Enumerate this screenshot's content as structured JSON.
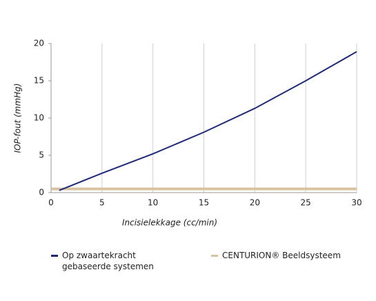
{
  "chart_data": {
    "type": "line",
    "xlabel": "Incisielekkage (cc/min)",
    "ylabel": "IOP-fout (mmHg)",
    "xlim": [
      0,
      30
    ],
    "xticks": [
      0,
      5,
      10,
      15,
      20,
      25,
      30
    ],
    "ylim": [
      0,
      20
    ],
    "yticks": [
      0,
      5,
      10,
      15,
      20
    ],
    "grid": true,
    "legend": "bottom",
    "series": [
      {
        "name": "Op zwaartekracht gebaseerde systemen",
        "color": "#1f2a7a",
        "x": [
          0.8,
          5,
          10,
          15,
          20,
          25,
          30
        ],
        "values": [
          0.3,
          2.6,
          5.2,
          8.1,
          11.3,
          15,
          18.9
        ]
      },
      {
        "name": "CENTURION® Beeldsysteem",
        "color": "#d8c3a0",
        "x": [
          0,
          30
        ],
        "values": [
          0.5,
          0.5
        ]
      }
    ]
  }
}
